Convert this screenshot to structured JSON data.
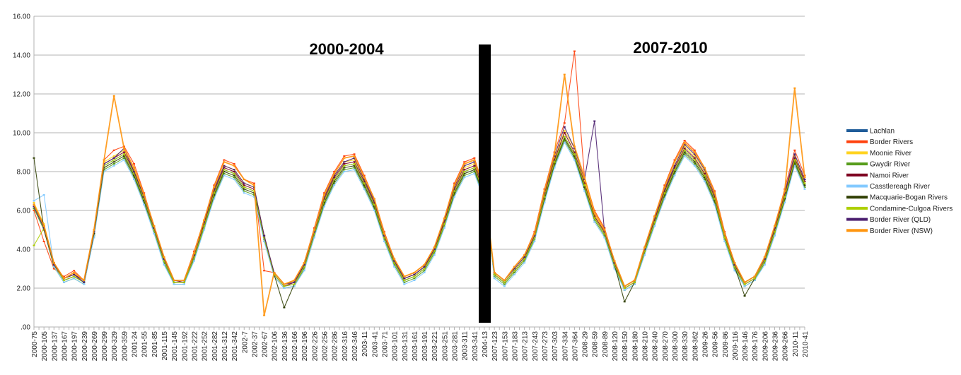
{
  "chart_data": {
    "type": "line",
    "title": "",
    "xlabel": "",
    "ylabel": "",
    "ylim": [
      0,
      16
    ],
    "yticks": [
      ".00",
      "2.00",
      "4.00",
      "6.00",
      "8.00",
      "10.00",
      "12.00",
      "14.00",
      "16.00"
    ],
    "grid": "horizontal",
    "legend_position": "right",
    "x_tick_labels": [
      "2000-75",
      "2000-105",
      "2000-137",
      "2000-167",
      "2000-197",
      "2000-239",
      "2000-269",
      "2000-299",
      "2000-329",
      "2000-359",
      "2001-24",
      "2001-55",
      "2001-85",
      "2001-115",
      "2001-145",
      "2001-192",
      "2001-222",
      "2001-252",
      "2001-282",
      "2001-312",
      "2001-342",
      "2002-7",
      "2002-37",
      "2002-67",
      "2002-106",
      "2002-136",
      "2002-166",
      "2002-196",
      "2002-226",
      "2002-256",
      "2002-286",
      "2002-316",
      "2002-346",
      "2003-11",
      "2003-41",
      "2003-71",
      "2003-101",
      "2003-131",
      "2003-161",
      "2003-191",
      "2003-221",
      "2003-251",
      "2003-281",
      "2003-311",
      "2003-341",
      "2004-13",
      "2007-123",
      "2007-153",
      "2007-183",
      "2007-213",
      "2007-243",
      "2007-273",
      "2007-303",
      "2007-334",
      "2007-364",
      "2008-29",
      "2008-59",
      "2008-89",
      "2008-120",
      "2008-150",
      "2008-180",
      "2008-210",
      "2008-240",
      "2008-270",
      "2008-300",
      "2008-330",
      "2008-362",
      "2009-26",
      "2009-56",
      "2009-86",
      "2009-116",
      "2009-146",
      "2009-176",
      "2009-206",
      "2009-236",
      "2009-266",
      "2010-11",
      "2010-41"
    ],
    "annotations": {
      "period_1": "2000-2004",
      "period_2": "2007-2010"
    },
    "series": [
      {
        "name": "Lachlan",
        "color": "#1f5c99",
        "values": [
          6.2,
          5.1,
          3.2,
          2.4,
          2.6,
          2.3,
          4.8,
          8.3,
          8.6,
          8.9,
          7.9,
          6.6,
          5.0,
          3.4,
          2.3,
          2.3,
          3.6,
          5.2,
          6.9,
          8.1,
          7.9,
          7.2,
          7.0,
          4.6,
          2.7,
          2.1,
          2.2,
          3.1,
          4.8,
          6.5,
          7.6,
          8.3,
          8.4,
          7.4,
          6.3,
          4.6,
          3.3,
          2.4,
          2.6,
          3.0,
          3.9,
          5.3,
          7.0,
          8.0,
          8.2,
          6.8,
          2.7,
          2.3,
          2.9,
          3.5,
          4.6,
          6.7,
          8.5,
          9.8,
          8.9,
          7.3,
          5.6,
          4.8,
          3.2,
          2.0,
          2.3,
          3.9,
          5.4,
          6.9,
          8.1,
          9.1,
          8.6,
          7.8,
          6.6,
          4.6,
          3.1,
          2.2,
          2.5,
          3.4,
          4.9,
          6.7,
          8.6,
          7.4
        ]
      },
      {
        "name": "Border Rivers",
        "color": "#ff420e",
        "values": [
          6.0,
          4.4,
          3.0,
          2.6,
          2.9,
          2.4,
          5.0,
          8.6,
          9.1,
          9.3,
          8.4,
          6.9,
          5.2,
          3.6,
          2.4,
          2.4,
          3.9,
          5.5,
          7.3,
          8.6,
          8.4,
          7.6,
          7.4,
          2.9,
          2.8,
          2.2,
          2.4,
          3.3,
          5.1,
          6.9,
          8.0,
          8.8,
          8.9,
          7.8,
          6.6,
          4.9,
          3.5,
          2.6,
          2.8,
          3.2,
          4.1,
          5.6,
          7.4,
          8.5,
          8.7,
          7.1,
          2.8,
          2.4,
          3.1,
          3.7,
          4.9,
          7.1,
          9.0,
          10.5,
          14.2,
          7.7,
          6.0,
          5.1,
          3.4,
          2.1,
          2.4,
          4.1,
          5.7,
          7.3,
          8.6,
          9.6,
          9.1,
          8.2,
          7.0,
          4.9,
          3.3,
          2.3,
          2.6,
          3.6,
          5.2,
          7.1,
          9.1,
          7.8
        ]
      },
      {
        "name": "Moonie River",
        "color": "#ffd320",
        "values": [
          6.4,
          5.3,
          3.3,
          2.5,
          2.7,
          2.4,
          5.0,
          8.5,
          8.8,
          9.1,
          8.1,
          6.8,
          5.1,
          3.5,
          2.4,
          2.4,
          3.7,
          5.3,
          7.1,
          8.3,
          8.1,
          7.4,
          7.2,
          4.7,
          2.8,
          2.2,
          2.3,
          3.2,
          4.9,
          6.7,
          7.8,
          8.5,
          8.6,
          7.6,
          6.5,
          4.7,
          3.4,
          2.5,
          2.7,
          3.1,
          4.0,
          5.4,
          7.2,
          8.2,
          8.4,
          7.0,
          2.8,
          2.4,
          3.0,
          3.6,
          4.7,
          6.9,
          8.7,
          10.1,
          9.2,
          7.5,
          5.8,
          4.9,
          3.3,
          2.1,
          2.4,
          4.0,
          5.6,
          7.1,
          8.3,
          9.3,
          8.8,
          8.0,
          6.8,
          4.7,
          3.2,
          2.3,
          2.6,
          3.5,
          5.0,
          6.9,
          8.8,
          7.6
        ]
      },
      {
        "name": "Gwydir River",
        "color": "#579d1c",
        "values": [
          6.1,
          5.0,
          3.1,
          2.3,
          2.5,
          2.2,
          4.7,
          8.1,
          8.4,
          8.7,
          7.7,
          6.4,
          4.9,
          3.3,
          2.2,
          2.2,
          3.5,
          5.1,
          6.7,
          7.9,
          7.7,
          7.0,
          6.8,
          4.5,
          2.6,
          2.0,
          2.1,
          3.0,
          4.7,
          6.3,
          7.4,
          8.1,
          8.2,
          7.2,
          6.1,
          4.5,
          3.2,
          2.3,
          2.5,
          2.9,
          3.8,
          5.2,
          6.8,
          7.8,
          8.0,
          6.6,
          2.6,
          2.2,
          2.8,
          3.4,
          4.5,
          6.5,
          8.3,
          9.6,
          8.7,
          7.1,
          5.5,
          4.7,
          3.1,
          1.9,
          2.2,
          3.8,
          5.3,
          6.7,
          7.9,
          8.9,
          8.4,
          7.6,
          6.4,
          4.5,
          3.0,
          2.1,
          2.4,
          3.3,
          4.8,
          6.5,
          8.4,
          7.2
        ]
      },
      {
        "name": "Namoi River",
        "color": "#7e0021",
        "values": [
          6.3,
          5.2,
          3.3,
          2.5,
          2.7,
          2.4,
          4.9,
          8.4,
          8.7,
          9.0,
          8.0,
          6.7,
          5.1,
          3.5,
          2.4,
          2.3,
          3.7,
          5.3,
          7.0,
          8.2,
          8.0,
          7.3,
          7.1,
          4.7,
          2.7,
          2.1,
          2.3,
          3.2,
          4.9,
          6.6,
          7.7,
          8.4,
          8.5,
          7.5,
          6.4,
          4.7,
          3.4,
          2.5,
          2.7,
          3.1,
          4.0,
          5.4,
          7.1,
          8.1,
          8.3,
          6.9,
          2.7,
          2.3,
          2.9,
          3.5,
          4.7,
          6.8,
          8.6,
          10.0,
          9.0,
          7.4,
          5.7,
          4.9,
          3.3,
          2.0,
          2.3,
          3.9,
          5.5,
          7.0,
          8.2,
          9.2,
          8.7,
          7.9,
          6.7,
          4.7,
          3.2,
          2.2,
          2.5,
          3.4,
          5.0,
          6.8,
          8.7,
          7.5
        ]
      },
      {
        "name": "Casstlereagh River",
        "color": "#83caff",
        "values": [
          6.5,
          6.8,
          3.1,
          2.3,
          2.5,
          2.2,
          4.6,
          8.0,
          8.3,
          8.6,
          7.6,
          6.3,
          4.8,
          3.2,
          2.2,
          2.2,
          3.4,
          5.0,
          6.6,
          7.8,
          7.6,
          6.9,
          6.7,
          4.4,
          2.6,
          2.0,
          2.1,
          2.9,
          4.6,
          6.2,
          7.3,
          8.0,
          8.1,
          7.1,
          6.0,
          4.4,
          3.1,
          2.2,
          2.4,
          2.8,
          3.7,
          5.1,
          6.7,
          7.7,
          7.9,
          6.5,
          2.5,
          2.1,
          2.7,
          3.3,
          4.4,
          6.4,
          8.2,
          9.5,
          8.6,
          7.0,
          5.4,
          4.6,
          3.0,
          1.9,
          2.2,
          3.7,
          5.2,
          6.6,
          7.8,
          8.8,
          8.3,
          7.5,
          6.3,
          4.4,
          2.9,
          2.1,
          2.4,
          3.2,
          4.7,
          6.4,
          8.3,
          7.1
        ]
      },
      {
        "name": "Macquarie-Bogan Rivers",
        "color": "#314004",
        "values": [
          8.7,
          5.0,
          3.2,
          2.4,
          2.6,
          2.3,
          4.8,
          8.2,
          8.5,
          8.8,
          7.8,
          6.5,
          5.0,
          3.4,
          2.3,
          2.3,
          3.6,
          5.2,
          6.8,
          8.0,
          7.8,
          7.1,
          6.9,
          4.6,
          2.7,
          1.0,
          2.2,
          3.1,
          4.8,
          6.4,
          7.5,
          8.2,
          8.3,
          7.3,
          6.2,
          4.6,
          3.3,
          2.4,
          2.6,
          3.0,
          3.9,
          5.3,
          6.9,
          7.9,
          8.1,
          6.7,
          2.7,
          2.3,
          2.9,
          3.5,
          4.6,
          6.6,
          8.4,
          9.7,
          8.8,
          7.2,
          5.6,
          4.8,
          3.2,
          1.3,
          2.3,
          3.9,
          5.4,
          6.8,
          8.0,
          9.0,
          8.5,
          7.7,
          6.5,
          4.6,
          3.1,
          1.6,
          2.5,
          3.4,
          4.9,
          6.6,
          8.5,
          7.3
        ]
      },
      {
        "name": "Condamine-Culgoa Rivers",
        "color": "#aecf00",
        "values": [
          4.2,
          5.1,
          3.2,
          2.4,
          2.6,
          2.3,
          4.9,
          8.3,
          8.6,
          8.9,
          7.9,
          6.6,
          5.0,
          3.4,
          2.3,
          2.3,
          3.6,
          5.2,
          6.9,
          8.1,
          7.9,
          7.2,
          7.0,
          4.6,
          2.7,
          2.1,
          2.2,
          3.1,
          4.8,
          6.5,
          7.6,
          8.3,
          8.4,
          7.4,
          6.3,
          4.6,
          3.3,
          2.4,
          2.6,
          3.0,
          3.9,
          5.3,
          7.0,
          8.0,
          8.2,
          6.8,
          2.7,
          2.3,
          2.9,
          3.5,
          4.6,
          6.7,
          8.5,
          9.8,
          8.9,
          7.3,
          5.6,
          4.8,
          3.2,
          2.0,
          2.3,
          3.9,
          5.4,
          6.9,
          8.1,
          9.1,
          8.6,
          7.8,
          6.6,
          4.6,
          3.1,
          2.2,
          2.5,
          3.4,
          4.9,
          6.7,
          8.6,
          7.4
        ]
      },
      {
        "name": "Border River (QLD)",
        "color": "#4b1f6f",
        "values": [
          6.2,
          5.1,
          3.2,
          2.5,
          2.7,
          2.3,
          4.9,
          8.4,
          8.7,
          9.2,
          8.0,
          6.7,
          5.1,
          3.5,
          2.4,
          2.4,
          3.7,
          5.4,
          7.1,
          8.3,
          8.1,
          7.4,
          7.2,
          4.7,
          2.8,
          2.2,
          2.3,
          3.2,
          4.9,
          6.7,
          7.8,
          8.5,
          8.7,
          7.6,
          6.5,
          4.7,
          3.4,
          2.5,
          2.7,
          3.1,
          4.0,
          5.5,
          7.2,
          8.3,
          8.5,
          7.0,
          2.8,
          2.4,
          3.0,
          3.6,
          4.7,
          6.9,
          8.8,
          10.3,
          9.2,
          7.6,
          10.6,
          4.9,
          3.3,
          2.1,
          2.4,
          4.0,
          5.6,
          7.1,
          8.3,
          9.4,
          8.9,
          8.1,
          6.8,
          4.8,
          3.2,
          2.3,
          2.6,
          3.5,
          5.1,
          6.9,
          8.9,
          7.6
        ]
      },
      {
        "name": "Border River (NSW)",
        "color": "#ff950e",
        "values": [
          6.3,
          5.2,
          3.3,
          2.5,
          2.8,
          2.4,
          5.0,
          8.6,
          11.9,
          9.2,
          8.2,
          6.8,
          5.2,
          3.6,
          2.4,
          2.4,
          3.8,
          5.5,
          7.2,
          8.5,
          8.3,
          7.6,
          7.3,
          0.6,
          2.8,
          2.2,
          2.4,
          3.3,
          5.0,
          6.8,
          7.9,
          8.7,
          8.8,
          7.7,
          6.6,
          4.8,
          3.5,
          2.6,
          2.8,
          3.2,
          4.1,
          5.6,
          7.3,
          8.4,
          8.6,
          7.1,
          2.8,
          2.4,
          3.1,
          3.7,
          4.8,
          7.0,
          8.9,
          13.0,
          9.3,
          7.7,
          5.9,
          5.0,
          3.4,
          2.1,
          2.4,
          4.1,
          5.7,
          7.2,
          8.5,
          9.5,
          9.0,
          8.2,
          6.9,
          4.8,
          3.3,
          2.3,
          2.6,
          3.6,
          5.2,
          7.0,
          12.3,
          7.7
        ]
      }
    ]
  }
}
